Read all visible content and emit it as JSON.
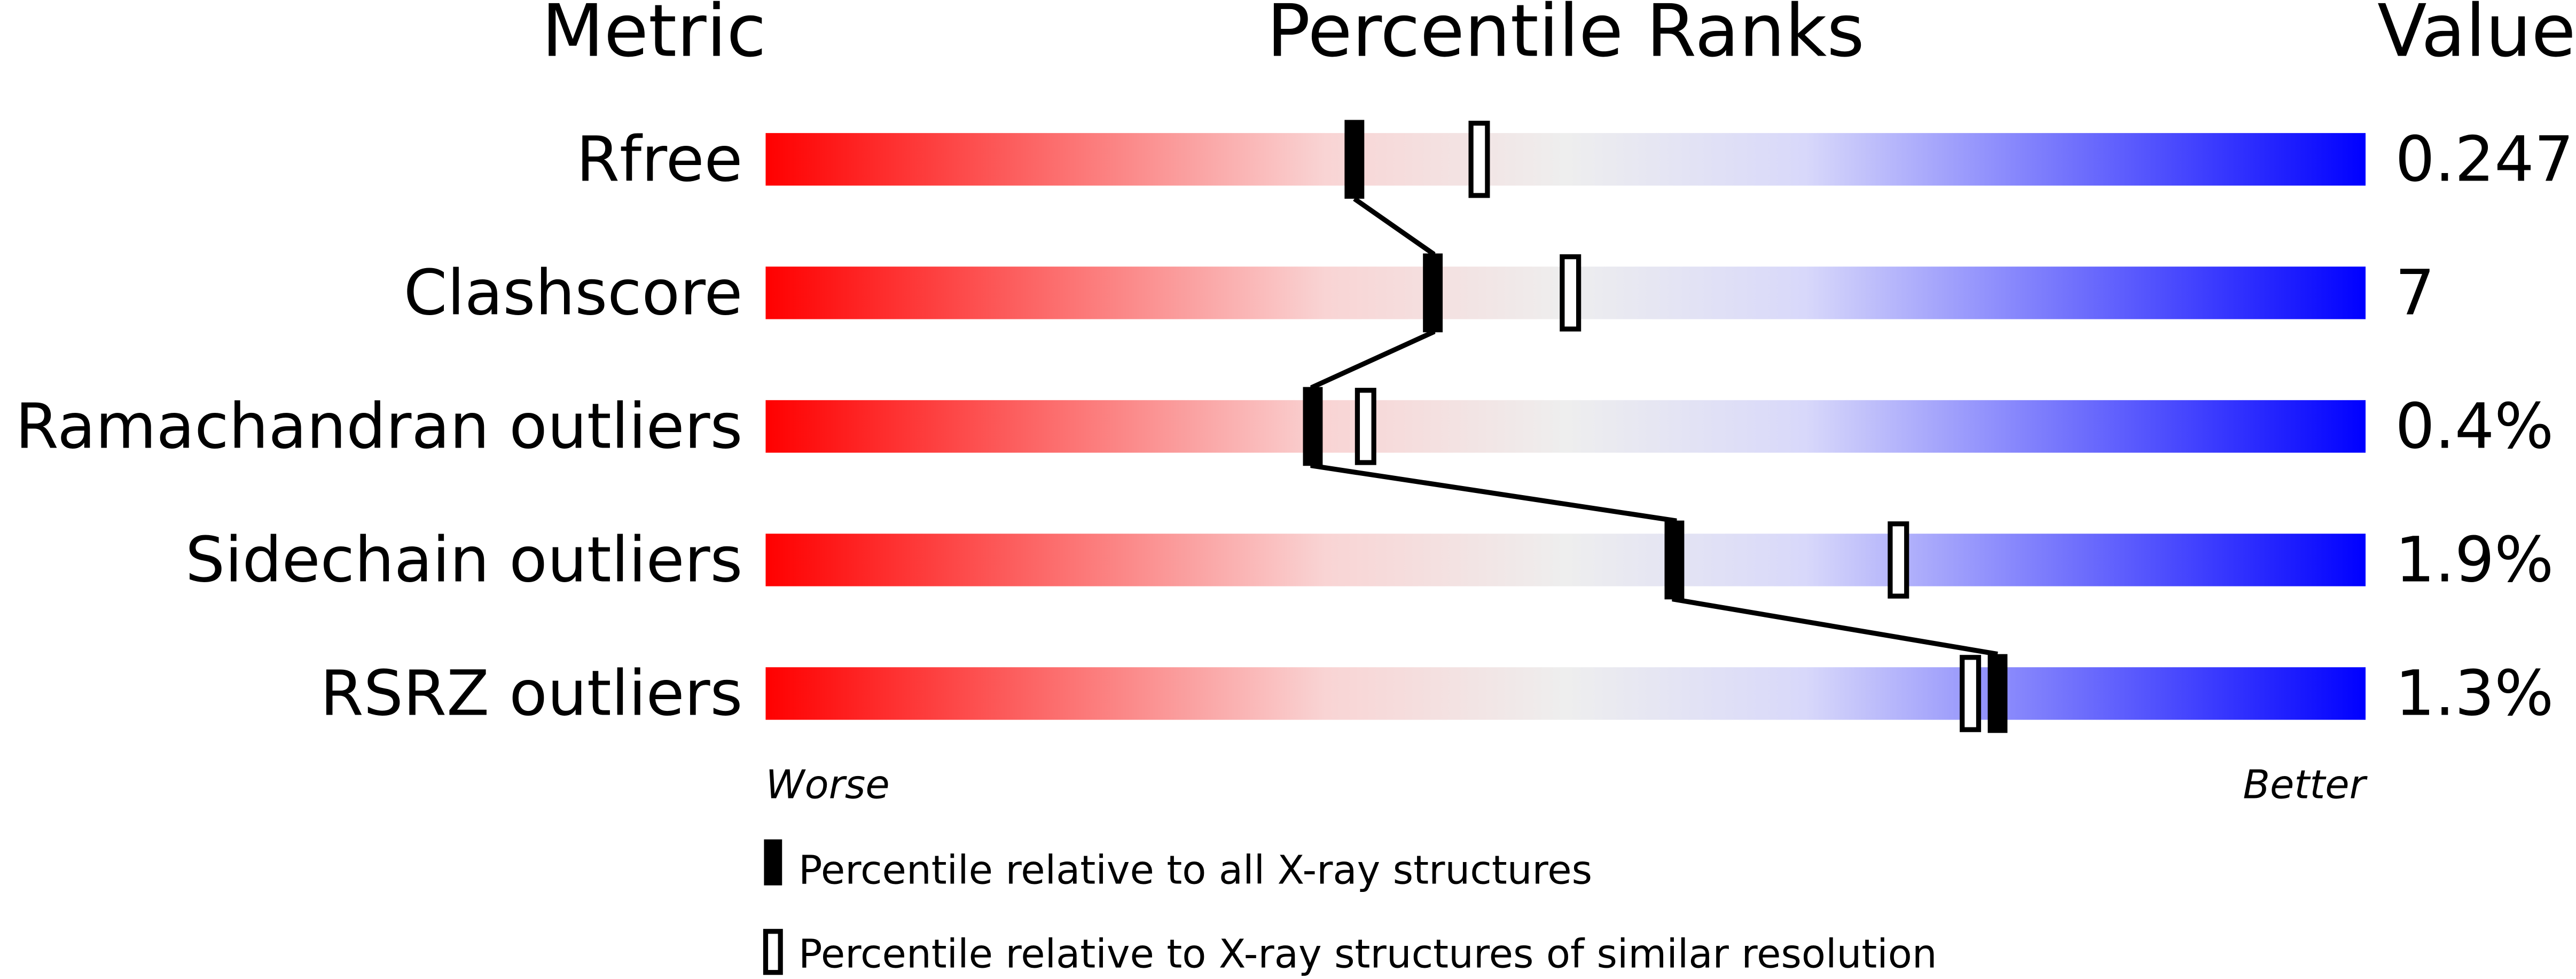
{
  "chart_data": {
    "type": "percentile-slider",
    "headers": {
      "metric": "Metric",
      "ranks": "Percentile Ranks",
      "value": "Value"
    },
    "xlim": [
      0,
      100
    ],
    "rows": [
      {
        "metric": "Rfree",
        "value": "0.247",
        "percentile_all": 36.8,
        "percentile_similar": 44.6
      },
      {
        "metric": "Clashscore",
        "value": "7",
        "percentile_all": 41.7,
        "percentile_similar": 50.3
      },
      {
        "metric": "Ramachandran outliers",
        "value": "0.4%",
        "percentile_all": 34.2,
        "percentile_similar": 37.5
      },
      {
        "metric": "Sidechain outliers",
        "value": "1.9%",
        "percentile_all": 56.8,
        "percentile_similar": 70.8
      },
      {
        "metric": "RSRZ outliers",
        "value": "1.3%",
        "percentile_all": 77.0,
        "percentile_similar": 75.3
      }
    ],
    "axis_labels": {
      "worse": "Worse",
      "better": "Better"
    },
    "legend": {
      "all": "Percentile relative to all X-ray structures",
      "similar": "Percentile relative to X-ray structures of similar resolution"
    },
    "colors": {
      "worst": "#ff0000",
      "middle": "#eeeeee",
      "best": "#0000ff",
      "marker": "#000000"
    }
  }
}
